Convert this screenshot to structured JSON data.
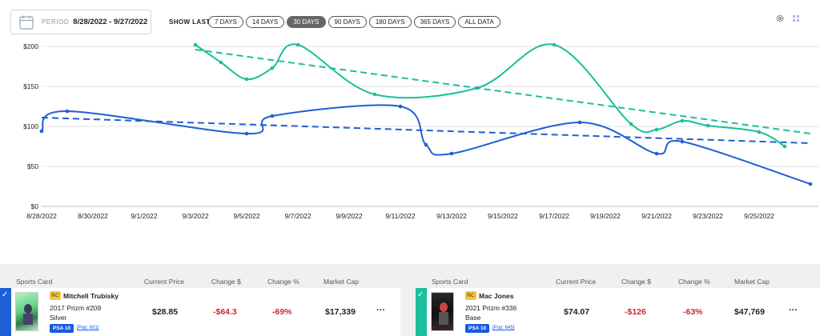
{
  "period": {
    "label": "PERIOD",
    "value": "8/28/2022 - 9/27/2022"
  },
  "show_last": {
    "label": "SHOW LAST",
    "options": [
      "7 DAYS",
      "14 DAYS",
      "30 DAYS",
      "90 DAYS",
      "180 DAYS",
      "365 DAYS",
      "ALL DATA"
    ],
    "active": "30 DAYS"
  },
  "icons": {
    "settings": "gear-icon",
    "grid": "grid-icon",
    "calendar": "calendar-icon"
  },
  "colors": {
    "blue_series": "#1f5fd6",
    "green_series": "#1bbf9a",
    "active_btn": "#666666",
    "negative": "#d3243a",
    "grade_badge": "#1559e8",
    "rc_badge": "#f4c542"
  },
  "chart_data": {
    "type": "line",
    "y_ticks": [
      "$0",
      "$50",
      "$100",
      "$150",
      "$200"
    ],
    "x_ticks": [
      "8/28/2022",
      "8/30/2022",
      "9/1/2022",
      "9/3/2022",
      "9/5/2022",
      "9/7/2022",
      "9/9/2022",
      "9/11/2022",
      "9/13/2022",
      "9/15/2022",
      "9/17/2022",
      "9/19/2022",
      "9/21/2022",
      "9/23/2022",
      "9/25/2022"
    ],
    "ylim": [
      0,
      200
    ],
    "grid": true,
    "series": [
      {
        "color": "#1f5fd6",
        "points": [
          [
            "2022-08-28",
            94
          ],
          [
            "2022-08-29",
            119
          ],
          [
            "2022-09-05",
            91
          ],
          [
            "2022-09-06",
            113
          ],
          [
            "2022-09-11",
            125
          ],
          [
            "2022-09-12",
            77
          ],
          [
            "2022-09-13",
            66
          ],
          [
            "2022-09-18",
            105
          ],
          [
            "2022-09-21",
            66
          ],
          [
            "2022-09-22",
            81
          ],
          [
            "2022-09-27",
            28
          ]
        ],
        "trend": [
          [
            "2022-08-28",
            111
          ],
          [
            "2022-09-27",
            79
          ]
        ]
      },
      {
        "color": "#1bbf9a",
        "points": [
          [
            "2022-09-03",
            202
          ],
          [
            "2022-09-04",
            180
          ],
          [
            "2022-09-05",
            159
          ],
          [
            "2022-09-06",
            173
          ],
          [
            "2022-09-07",
            202
          ],
          [
            "2022-09-10",
            140
          ],
          [
            "2022-09-14",
            148
          ],
          [
            "2022-09-17",
            202
          ],
          [
            "2022-09-20",
            103
          ],
          [
            "2022-09-21",
            96
          ],
          [
            "2022-09-22",
            107
          ],
          [
            "2022-09-23",
            101
          ],
          [
            "2022-09-25",
            93
          ],
          [
            "2022-09-26",
            75
          ]
        ],
        "trend": [
          [
            "2022-09-03",
            196
          ],
          [
            "2022-09-27",
            91
          ]
        ]
      }
    ]
  },
  "table": {
    "headers": [
      "Sports Card",
      "Current Price",
      "Change $",
      "Change %",
      "Market Cap"
    ],
    "rows": [
      {
        "rc": "RC",
        "player": "Mitchell Trubisky",
        "set": "2017 Prizm #209",
        "variant": "Silver",
        "grade": "PSA 10",
        "pop": "[Pop: 601]",
        "price": "$28.85",
        "change_usd": "-$64.3",
        "change_pct": "-69%",
        "market_cap": "$17,339",
        "more": "···",
        "check_color": "#1f5fd6"
      },
      {
        "rc": "RC",
        "player": "Mac Jones",
        "set": "2021 Prizm #336",
        "variant": "Base",
        "grade": "PSA 10",
        "pop": "[Pop: 645]",
        "price": "$74.07",
        "change_usd": "-$126",
        "change_pct": "-63%",
        "market_cap": "$47,769",
        "more": "···",
        "check_color": "#1bbf9a"
      }
    ]
  }
}
